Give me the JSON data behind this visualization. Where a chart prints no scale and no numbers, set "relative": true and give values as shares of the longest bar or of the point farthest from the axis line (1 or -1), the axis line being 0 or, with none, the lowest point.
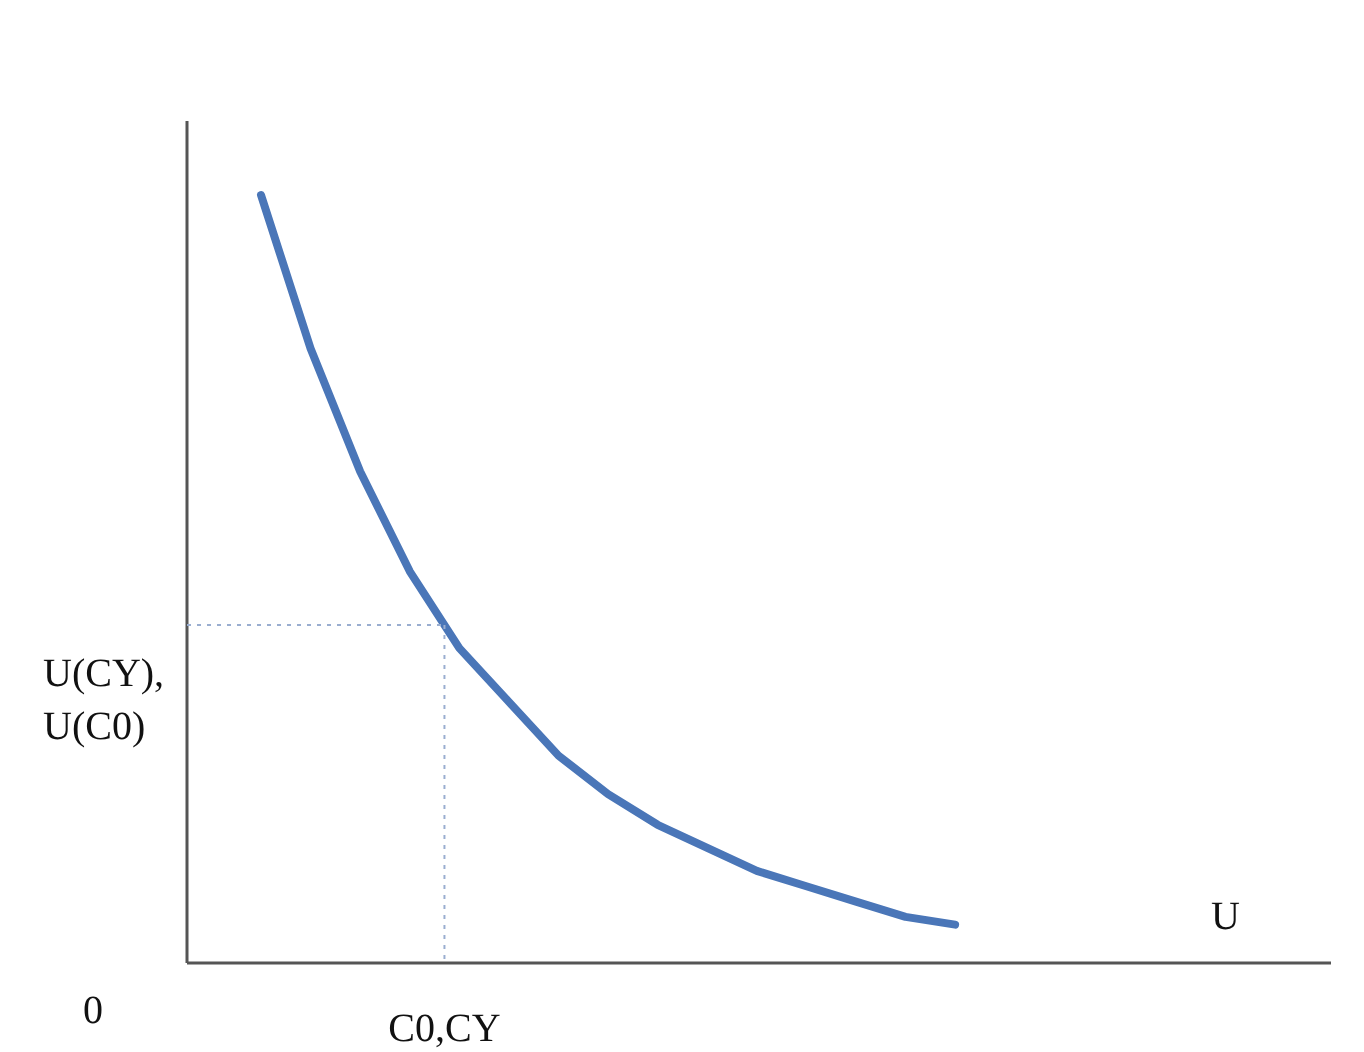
{
  "chart_data": {
    "type": "line",
    "relative": true,
    "categories": [
      null,
      null,
      null,
      null,
      null,
      null,
      null,
      null,
      null,
      null,
      null,
      null,
      null,
      null,
      null
    ],
    "series": [
      {
        "color": "#4a76b8",
        "values": [
          1,
          0.8,
          0.64,
          0.51,
          0.41,
          0.34,
          0.27,
          0.22,
          0.18,
          0.15,
          0.12,
          0.1,
          0.08,
          0.06,
          0.05
        ]
      }
    ],
    "ref_lines": [
      {
        "axis": "y",
        "value": 0.44,
        "label": "U(CY),\nU(C0)",
        "color": "#9aaed0",
        "line_style": "dotted"
      }
    ],
    "annotations": [
      "U",
      "0",
      "C0,CY"
    ],
    "grid": false,
    "marker": "none",
    "line_style": "solid"
  }
}
